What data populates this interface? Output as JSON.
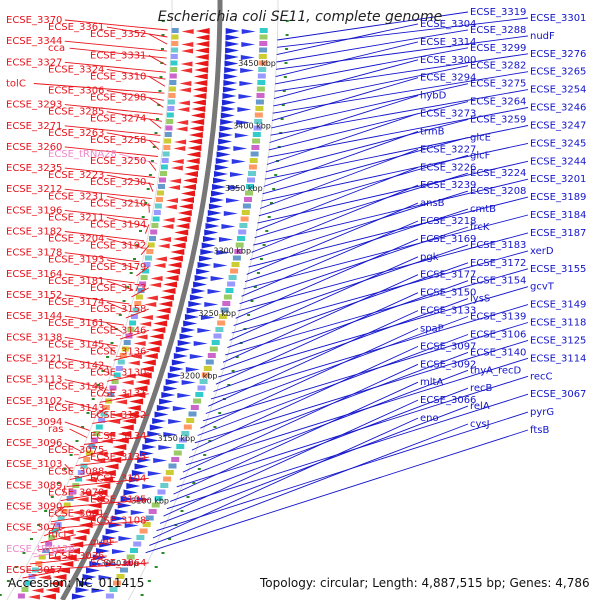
{
  "title": "Escherichia coli SE11, complete genome",
  "footer": {
    "accession": "Accession: NC_011415",
    "summary": "Topology: circular; Length: 4,887,515 bp; Genes: 4,786"
  },
  "colors": {
    "left": "#e8141c",
    "right": "#1414cc",
    "trna": "#ee88cc",
    "ring": "#777777"
  },
  "ticks": [
    "3450 kbp",
    "3400 kbp",
    "3350 kbp",
    "3300 kbp",
    "3250 kbp",
    "3200 kbp",
    "3150 kbp",
    "3100 kbp",
    "3050 kbp"
  ],
  "left_labels": [
    {
      "t": "ECSE_3370",
      "c": "left"
    },
    {
      "t": "ECSE_3361",
      "c": "left"
    },
    {
      "t": "ECSE_3352",
      "c": "left"
    },
    {
      "t": "ECSE_3344",
      "c": "left"
    },
    {
      "t": "cca",
      "c": "left"
    },
    {
      "t": "ECSE_3331",
      "c": "left"
    },
    {
      "t": "ECSE_3327",
      "c": "left"
    },
    {
      "t": "ECSE_3324",
      "c": "left"
    },
    {
      "t": "ECSE_3310",
      "c": "left"
    },
    {
      "t": "tolC",
      "c": "left"
    },
    {
      "t": "ECSE_3306",
      "c": "left"
    },
    {
      "t": "ECSE_3298",
      "c": "left"
    },
    {
      "t": "ECSE_3293",
      "c": "left"
    },
    {
      "t": "ECSE_3285",
      "c": "left"
    },
    {
      "t": "ECSE_3274",
      "c": "left"
    },
    {
      "t": "ECSE_3271",
      "c": "left"
    },
    {
      "t": "ECSE_3263",
      "c": "left"
    },
    {
      "t": "ECSE_3258",
      "c": "left"
    },
    {
      "t": "ECSE_3260",
      "c": "left"
    },
    {
      "t": "ECSE_tRNA28",
      "c": "trna"
    },
    {
      "t": "ECSE_3250",
      "c": "left"
    },
    {
      "t": "ECSE_3235",
      "c": "left"
    },
    {
      "t": "ECSE_3223",
      "c": "left"
    },
    {
      "t": "ECSE_3230",
      "c": "left"
    },
    {
      "t": "ECSE_3212",
      "c": "left"
    },
    {
      "t": "ECSE_3231",
      "c": "left"
    },
    {
      "t": "ECSE_3210",
      "c": "left"
    },
    {
      "t": "ECSE_3196",
      "c": "left"
    },
    {
      "t": "ECSE_3211",
      "c": "left"
    },
    {
      "t": "ECSE_3194",
      "c": "left"
    },
    {
      "t": "ECSE_3182",
      "c": "left"
    },
    {
      "t": "ECSE_3204",
      "c": "left"
    },
    {
      "t": "ECSE_3192",
      "c": "left"
    },
    {
      "t": "ECSE_3178",
      "c": "left"
    },
    {
      "t": "ECSE_3193",
      "c": "left"
    },
    {
      "t": "ECSE_3179",
      "c": "left"
    },
    {
      "t": "ECSE_3164",
      "c": "left"
    },
    {
      "t": "ECSE_3181",
      "c": "left"
    },
    {
      "t": "ECSE_3173",
      "c": "left"
    },
    {
      "t": "ECSE_3152",
      "c": "left"
    },
    {
      "t": "ECSE_3174",
      "c": "left"
    },
    {
      "t": "ECSE_3158",
      "c": "left"
    },
    {
      "t": "ECSE_3144",
      "c": "left"
    },
    {
      "t": "ECSE_3161",
      "c": "left"
    },
    {
      "t": "ECSE_3146",
      "c": "left"
    },
    {
      "t": "ECSE_3138",
      "c": "left"
    },
    {
      "t": "ECSE_3145",
      "c": "left"
    },
    {
      "t": "ECSE_3136",
      "c": "left"
    },
    {
      "t": "ECSE_3121",
      "c": "left"
    },
    {
      "t": "ECSE_3142",
      "c": "left"
    },
    {
      "t": "ECSE_3130",
      "c": "left"
    },
    {
      "t": "ECSE_3113",
      "c": "left"
    },
    {
      "t": "ECSE_3148",
      "c": "left"
    },
    {
      "t": "ECSE_3131",
      "c": "left"
    },
    {
      "t": "ECSE_3102",
      "c": "left"
    },
    {
      "t": "ECSE_3143",
      "c": "left"
    },
    {
      "t": "ECSE_3132",
      "c": "left"
    },
    {
      "t": "ECSE_3094",
      "c": "left"
    },
    {
      "t": "ras",
      "c": "left"
    },
    {
      "t": "ECSE_3134",
      "c": "left"
    },
    {
      "t": "ECSE_3096",
      "c": "left"
    },
    {
      "t": "ECSE_3075",
      "c": "left"
    },
    {
      "t": "ECSE_3135",
      "c": "left"
    },
    {
      "t": "ECSE_3103",
      "c": "left"
    },
    {
      "t": "ECSE_3088",
      "c": "left"
    },
    {
      "t": "ECSE_3104",
      "c": "left"
    },
    {
      "t": "ECSE_3089",
      "c": "left"
    },
    {
      "t": "ECSE_3070",
      "c": "left"
    },
    {
      "t": "ECSE_3105",
      "c": "left"
    },
    {
      "t": "ECSE_3090",
      "c": "left"
    },
    {
      "t": "ECSE_3061",
      "c": "left"
    },
    {
      "t": "ECSE_3108",
      "c": "left"
    },
    {
      "t": "ECSE_3071",
      "c": "left"
    },
    {
      "t": "fucI",
      "c": "left"
    },
    {
      "t": "queF",
      "c": "left"
    },
    {
      "t": "ECSE_tRNA26",
      "c": "trna"
    },
    {
      "t": "ECSE_3036",
      "c": "left"
    },
    {
      "t": "ECSE_3064",
      "c": "left"
    },
    {
      "t": "ECSE_3057",
      "c": "left"
    }
  ],
  "right_labels": [
    {
      "t": "ECSE_3319"
    },
    {
      "t": "ECSE_3301"
    },
    {
      "t": "ECSE_3304"
    },
    {
      "t": "ECSE_3288"
    },
    {
      "t": "nudF"
    },
    {
      "t": "ECSE_3314"
    },
    {
      "t": "ECSE_3299"
    },
    {
      "t": "ECSE_3276"
    },
    {
      "t": "ECSE_3300"
    },
    {
      "t": "ECSE_3282"
    },
    {
      "t": "ECSE_3265"
    },
    {
      "t": "ECSE_3294"
    },
    {
      "t": "ECSE_3275"
    },
    {
      "t": "ECSE_3254"
    },
    {
      "t": "hybD"
    },
    {
      "t": "ECSE_3264"
    },
    {
      "t": "ECSE_3246"
    },
    {
      "t": "ECSE_3273"
    },
    {
      "t": "ECSE_3259"
    },
    {
      "t": "ECSE_3247"
    },
    {
      "t": "trmB"
    },
    {
      "t": "glcE"
    },
    {
      "t": "ECSE_3245"
    },
    {
      "t": "ECSE_3227"
    },
    {
      "t": "glcF"
    },
    {
      "t": "ECSE_3244"
    },
    {
      "t": "ECSE_3226"
    },
    {
      "t": "ECSE_3224"
    },
    {
      "t": "ECSE_3201"
    },
    {
      "t": "ECSE_3239"
    },
    {
      "t": "ECSE_3208"
    },
    {
      "t": "ECSE_3189"
    },
    {
      "t": "ansB"
    },
    {
      "t": "cmtB"
    },
    {
      "t": "ECSE_3184"
    },
    {
      "t": "ECSE_3218"
    },
    {
      "t": "frcK"
    },
    {
      "t": "ECSE_3187"
    },
    {
      "t": "ECSE_3169"
    },
    {
      "t": "ECSE_3183"
    },
    {
      "t": "xerD"
    },
    {
      "t": "pgk"
    },
    {
      "t": "ECSE_3172"
    },
    {
      "t": "ECSE_3155"
    },
    {
      "t": "ECSE_3177"
    },
    {
      "t": "ECSE_3154"
    },
    {
      "t": "gcvT"
    },
    {
      "t": "ECSE_3150"
    },
    {
      "t": "lysS"
    },
    {
      "t": "ECSE_3149"
    },
    {
      "t": "ECSE_3133"
    },
    {
      "t": "ECSE_3139"
    },
    {
      "t": "ECSE_3118"
    },
    {
      "t": "spaP"
    },
    {
      "t": "ECSE_3106"
    },
    {
      "t": "ECSE_3125"
    },
    {
      "t": "ECSE_3097"
    },
    {
      "t": "ECSE_3140"
    },
    {
      "t": "ECSE_3114"
    },
    {
      "t": "ECSE_3092"
    },
    {
      "t": "thyA_recD"
    },
    {
      "t": "recC"
    },
    {
      "t": "mltA"
    },
    {
      "t": "recB"
    },
    {
      "t": "ECSE_3067"
    },
    {
      "t": "ECSE_3066"
    },
    {
      "t": "relA"
    },
    {
      "t": "pyrG"
    },
    {
      "t": "eno"
    },
    {
      "t": "cysJ"
    },
    {
      "t": "ftsB"
    }
  ]
}
